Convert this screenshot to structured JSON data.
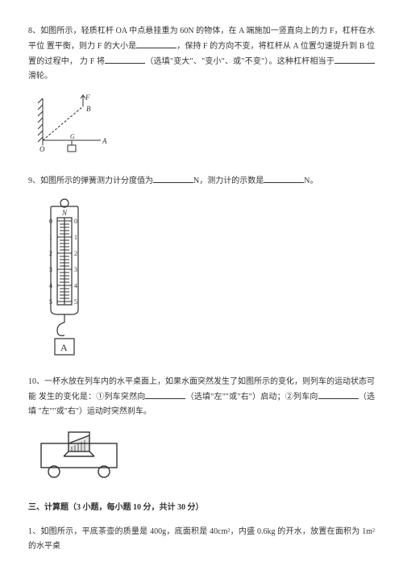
{
  "q8": {
    "line1_a": "8、如图所示，轻质杠杆 OA 中点悬挂重为 60N 的物体，在 A 端施加一竖直向上的力 F，杠杆在水平位",
    "line1_b": "置平衡，则力 F 的大小是",
    "line1_c": "，保持 F 的方向不变，将杠杆从 A 位置匀速提升到 B 位置的过程中，",
    "line2_a": "力 F 将",
    "line2_b": "（选填\"变大\"、\"变小\"、或\"不变\"）。这种杠杆相当于",
    "line2_c": "滑轮。",
    "blank_widths": {
      "b1": 50,
      "b2": 50,
      "b3": 50
    },
    "fig": {
      "labels": {
        "F": "F",
        "B": "B",
        "O": "O",
        "G": "G",
        "A": "A"
      },
      "stroke": "#333333"
    }
  },
  "q9": {
    "text_a": "9、如图所示的弹簧测力计分度值为",
    "text_b": "N，测力计的示数是",
    "text_c": "N。",
    "blank_widths": {
      "b1": 50,
      "b2": 50
    },
    "fig": {
      "labels": {
        "N": "N",
        "A": "A"
      },
      "ticks": [
        "0",
        "1",
        "2",
        "3",
        "4",
        "5"
      ],
      "stroke": "#333333"
    }
  },
  "q10": {
    "line1": "10、一杯水放在列车内的水平桌面上，如果水面突然发生了如图所示的变化，则列车的运动状态可能",
    "line2_a": "发生的变化是：①列车突然向",
    "line2_b": "（选填\"左\"\"或\"右\"）启动；②列车向",
    "line2_c": "（选填",
    "line3": "\"左\"\"或\"右\"）运动时突然刹车。",
    "blank_widths": {
      "b1": 50,
      "b2": 50
    },
    "fig": {
      "stroke": "#333333"
    }
  },
  "section3": {
    "title": "三、计算题（3 小题，每小题 10 分，共计 30 分）"
  },
  "q_section3_1": {
    "text": "1、如图所示，平底茶壶的质量是 400g，底面积是 40cm²，内盛 0.6kg 的开水，放置在面积为 1m² 的水平桌"
  }
}
